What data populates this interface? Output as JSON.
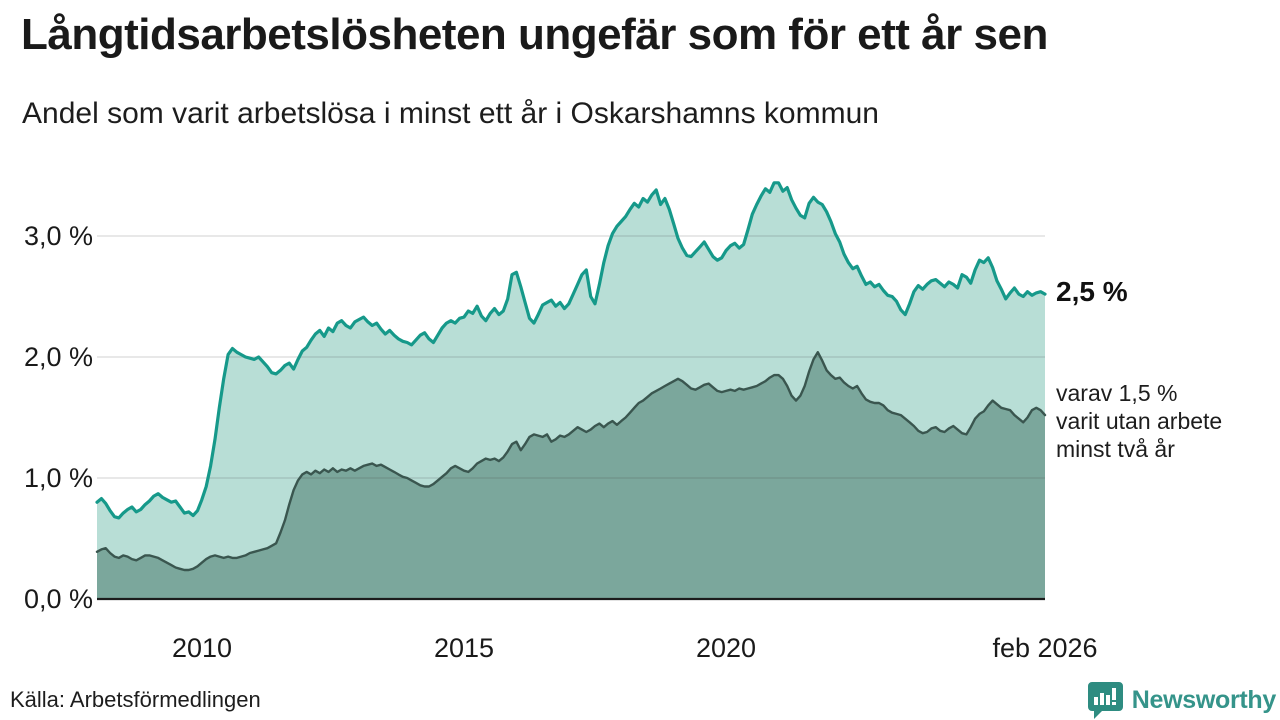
{
  "header": {
    "title": "Långtidsarbetslösheten ungefär som för ett år sen",
    "subtitle": "Andel som varit arbetslösa i minst ett år i Oskarshamns kommun"
  },
  "footer": {
    "source": "Källa: Arbetsförmedlingen",
    "logo_text": "Newsworthy"
  },
  "colors": {
    "long_line": "#16998a",
    "long_fill": "#b8ded6",
    "short_line": "#3a564f",
    "short_fill": "#7ba79c",
    "grid": "rgba(60,60,60,0.16)",
    "axis": "#1c1c1c",
    "logo_teal": "#35948a"
  },
  "chart_data": {
    "type": "area",
    "title": "Långtidsarbetslösheten ungefär som för ett år sen",
    "subtitle": "Andel som varit arbetslösa i minst ett år i Oskarshamns kommun",
    "unit": "%",
    "frequency": "monthly",
    "x_start": "2008-01",
    "x_end": "2026-02",
    "ylim": [
      0,
      3.55
    ],
    "grid": "horizontal",
    "y_ticks": [
      {
        "label": "0,0 %",
        "value": 0.0
      },
      {
        "label": "1,0 %",
        "value": 1.0
      },
      {
        "label": "2,0 %",
        "value": 2.0
      },
      {
        "label": "3,0 %",
        "value": 3.0
      }
    ],
    "x_ticks": [
      {
        "label": "2010",
        "year_frac": 2010.0
      },
      {
        "label": "2015",
        "year_frac": 2015.0
      },
      {
        "label": "2020",
        "year_frac": 2020.0
      },
      {
        "label": "feb 2026",
        "year_frac": 2026.083
      }
    ],
    "end_labels": {
      "primary": "2,5 %",
      "secondary": [
        "varav 1,5 %",
        "varit utan arbete",
        "minst två år"
      ]
    },
    "series": [
      {
        "name": "Andel arbetslösa minst ett år",
        "end_value": 2.5,
        "values": [
          0.8,
          0.83,
          0.79,
          0.73,
          0.68,
          0.67,
          0.71,
          0.74,
          0.76,
          0.72,
          0.74,
          0.78,
          0.81,
          0.85,
          0.87,
          0.84,
          0.82,
          0.8,
          0.81,
          0.76,
          0.71,
          0.72,
          0.69,
          0.73,
          0.82,
          0.93,
          1.1,
          1.32,
          1.58,
          1.82,
          2.02,
          2.07,
          2.04,
          2.02,
          2.0,
          1.99,
          1.98,
          2.0,
          1.96,
          1.92,
          1.87,
          1.86,
          1.89,
          1.93,
          1.95,
          1.9,
          1.98,
          2.05,
          2.08,
          2.14,
          2.19,
          2.22,
          2.17,
          2.24,
          2.21,
          2.28,
          2.3,
          2.26,
          2.24,
          2.29,
          2.31,
          2.33,
          2.29,
          2.26,
          2.28,
          2.23,
          2.19,
          2.22,
          2.18,
          2.15,
          2.13,
          2.12,
          2.1,
          2.14,
          2.18,
          2.2,
          2.15,
          2.12,
          2.18,
          2.24,
          2.28,
          2.3,
          2.28,
          2.32,
          2.33,
          2.38,
          2.36,
          2.42,
          2.34,
          2.3,
          2.36,
          2.4,
          2.35,
          2.38,
          2.48,
          2.68,
          2.7,
          2.58,
          2.45,
          2.32,
          2.28,
          2.35,
          2.43,
          2.45,
          2.47,
          2.42,
          2.45,
          2.4,
          2.44,
          2.52,
          2.6,
          2.68,
          2.72,
          2.5,
          2.44,
          2.6,
          2.78,
          2.92,
          3.02,
          3.08,
          3.12,
          3.16,
          3.22,
          3.27,
          3.24,
          3.31,
          3.28,
          3.34,
          3.38,
          3.26,
          3.31,
          3.22,
          3.1,
          2.98,
          2.9,
          2.84,
          2.83,
          2.87,
          2.91,
          2.95,
          2.89,
          2.83,
          2.8,
          2.82,
          2.88,
          2.92,
          2.94,
          2.9,
          2.93,
          3.05,
          3.18,
          3.26,
          3.33,
          3.39,
          3.36,
          3.44,
          3.44,
          3.37,
          3.4,
          3.3,
          3.23,
          3.17,
          3.15,
          3.27,
          3.32,
          3.28,
          3.26,
          3.2,
          3.12,
          3.02,
          2.95,
          2.85,
          2.78,
          2.73,
          2.75,
          2.67,
          2.6,
          2.62,
          2.58,
          2.6,
          2.55,
          2.51,
          2.5,
          2.46,
          2.39,
          2.35,
          2.44,
          2.54,
          2.59,
          2.56,
          2.6,
          2.63,
          2.64,
          2.61,
          2.58,
          2.62,
          2.6,
          2.57,
          2.68,
          2.66,
          2.61,
          2.72,
          2.8,
          2.78,
          2.82,
          2.74,
          2.63,
          2.56,
          2.48,
          2.53,
          2.57,
          2.52,
          2.5,
          2.54,
          2.51,
          2.53,
          2.54,
          2.52
        ]
      },
      {
        "name": "varav utan arbete minst två år",
        "end_value": 1.5,
        "values": [
          0.39,
          0.41,
          0.42,
          0.38,
          0.35,
          0.34,
          0.36,
          0.35,
          0.33,
          0.32,
          0.34,
          0.36,
          0.36,
          0.35,
          0.34,
          0.32,
          0.3,
          0.28,
          0.26,
          0.25,
          0.24,
          0.24,
          0.25,
          0.27,
          0.3,
          0.33,
          0.35,
          0.36,
          0.35,
          0.34,
          0.35,
          0.34,
          0.34,
          0.35,
          0.36,
          0.38,
          0.39,
          0.4,
          0.41,
          0.42,
          0.44,
          0.46,
          0.55,
          0.65,
          0.78,
          0.9,
          0.98,
          1.03,
          1.05,
          1.03,
          1.06,
          1.04,
          1.07,
          1.05,
          1.08,
          1.05,
          1.07,
          1.06,
          1.08,
          1.06,
          1.08,
          1.1,
          1.11,
          1.12,
          1.1,
          1.11,
          1.09,
          1.07,
          1.05,
          1.03,
          1.01,
          1.0,
          0.98,
          0.96,
          0.94,
          0.93,
          0.93,
          0.95,
          0.98,
          1.01,
          1.04,
          1.08,
          1.1,
          1.08,
          1.06,
          1.05,
          1.08,
          1.12,
          1.14,
          1.16,
          1.15,
          1.16,
          1.14,
          1.17,
          1.22,
          1.28,
          1.3,
          1.23,
          1.28,
          1.34,
          1.36,
          1.35,
          1.34,
          1.36,
          1.3,
          1.32,
          1.35,
          1.34,
          1.36,
          1.39,
          1.42,
          1.4,
          1.38,
          1.4,
          1.43,
          1.45,
          1.42,
          1.45,
          1.47,
          1.44,
          1.47,
          1.5,
          1.54,
          1.58,
          1.62,
          1.64,
          1.67,
          1.7,
          1.72,
          1.74,
          1.76,
          1.78,
          1.8,
          1.82,
          1.8,
          1.77,
          1.74,
          1.73,
          1.75,
          1.77,
          1.78,
          1.75,
          1.72,
          1.71,
          1.72,
          1.73,
          1.72,
          1.74,
          1.73,
          1.74,
          1.75,
          1.76,
          1.78,
          1.8,
          1.83,
          1.85,
          1.85,
          1.82,
          1.76,
          1.68,
          1.64,
          1.68,
          1.76,
          1.88,
          1.98,
          2.04,
          1.97,
          1.89,
          1.85,
          1.82,
          1.83,
          1.79,
          1.76,
          1.74,
          1.76,
          1.7,
          1.65,
          1.63,
          1.62,
          1.62,
          1.6,
          1.56,
          1.54,
          1.53,
          1.52,
          1.49,
          1.46,
          1.43,
          1.39,
          1.37,
          1.38,
          1.41,
          1.42,
          1.39,
          1.38,
          1.41,
          1.43,
          1.4,
          1.37,
          1.36,
          1.42,
          1.49,
          1.53,
          1.55,
          1.6,
          1.64,
          1.61,
          1.58,
          1.57,
          1.56,
          1.52,
          1.49,
          1.46,
          1.5,
          1.56,
          1.58,
          1.56,
          1.52
        ]
      }
    ]
  }
}
